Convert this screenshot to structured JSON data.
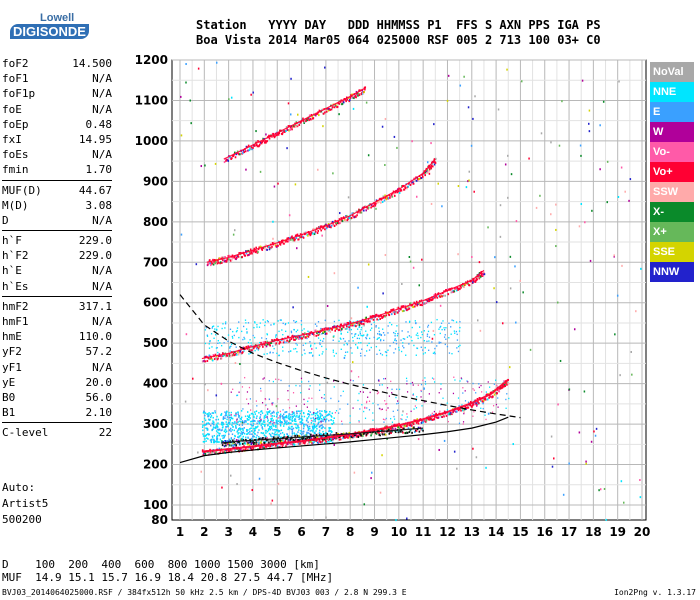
{
  "logo": {
    "line1": "Lowell",
    "line2": "DIGISONDE"
  },
  "header": {
    "labels": "Station   YYYY DAY   DDD HHMMSS P1  FFS S AXN PPS IGA PS",
    "values": "Boa Vista 2014 Mar05 064 025000 RSF 005 2 713 100 03+ C0"
  },
  "params": {
    "group1": [
      {
        "name": "foF2",
        "value": "14.500"
      },
      {
        "name": "foF1",
        "value": "N/A"
      },
      {
        "name": "foF1p",
        "value": "N/A"
      },
      {
        "name": "foE",
        "value": "N/A"
      },
      {
        "name": "foEp",
        "value": "0.48"
      },
      {
        "name": "fxI",
        "value": "14.95"
      },
      {
        "name": "foEs",
        "value": "N/A"
      },
      {
        "name": "fmin",
        "value": "1.70"
      }
    ],
    "group2": [
      {
        "name": "MUF(D)",
        "value": "44.67"
      },
      {
        "name": "M(D)",
        "value": "3.08"
      },
      {
        "name": "D",
        "value": "N/A"
      }
    ],
    "group3": [
      {
        "name": "h`F",
        "value": "229.0"
      },
      {
        "name": "h`F2",
        "value": "229.0"
      },
      {
        "name": "h`E",
        "value": "N/A"
      },
      {
        "name": "h`Es",
        "value": "N/A"
      }
    ],
    "group4": [
      {
        "name": "hmF2",
        "value": "317.1"
      },
      {
        "name": "hmF1",
        "value": "N/A"
      },
      {
        "name": "hmE",
        "value": "110.0"
      },
      {
        "name": "yF2",
        "value": "57.2"
      },
      {
        "name": "yF1",
        "value": "N/A"
      },
      {
        "name": "yE",
        "value": "20.0"
      },
      {
        "name": "B0",
        "value": "56.0"
      },
      {
        "name": "B1",
        "value": "2.10"
      }
    ],
    "group5": [
      {
        "name": "C-level",
        "value": "22"
      }
    ]
  },
  "auto": {
    "line1": "Auto:",
    "line2": "Artist5",
    "line3": "500200"
  },
  "distance_table": {
    "line1": "D    100  200  400  600  800 1000 1500 3000 [km]",
    "line2": "MUF  14.9 15.1 15.7 16.9 18.4 20.8 27.5 44.7 [MHz]"
  },
  "footer": {
    "left": "BVJ03_2014064025000.RSF / 384fx512h 50 kHz 2.5 km / DPS-4D BVJ03 003 / 2.8 N 299.3 E",
    "right": "Ion2Png v. 1.3.17"
  },
  "legend": [
    {
      "label": "NoVal",
      "color": "#a8a8a8"
    },
    {
      "label": "NNE",
      "color": "#00e5ff"
    },
    {
      "label": "E",
      "color": "#3aa0ff"
    },
    {
      "label": "W",
      "color": "#b0009a"
    },
    {
      "label": "Vo-",
      "color": "#ff5aa8"
    },
    {
      "label": "Vo+",
      "color": "#ff0033"
    },
    {
      "label": "SSW",
      "color": "#ffaaaa"
    },
    {
      "label": "X-",
      "color": "#0a8a2a"
    },
    {
      "label": "X+",
      "color": "#66b85a"
    },
    {
      "label": "SSE",
      "color": "#d4d400"
    },
    {
      "label": "NNW",
      "color": "#2222cc"
    }
  ],
  "chart_data": {
    "type": "scatter",
    "xlabel": "",
    "ylabel": "",
    "xlim": [
      1,
      20
    ],
    "ylim": [
      80,
      1200
    ],
    "x_ticks": [
      1,
      2,
      3,
      4,
      5,
      6,
      7,
      8,
      9,
      10,
      11,
      12,
      13,
      14,
      15,
      16,
      17,
      18,
      19,
      20
    ],
    "y_ticks": [
      80,
      100,
      200,
      300,
      400,
      500,
      600,
      700,
      800,
      900,
      1000,
      1100,
      1200
    ],
    "grid": true,
    "traces": [
      {
        "name": "O-trace F2",
        "color": "#ff0033",
        "x": [
          1.9,
          3,
          4,
          5,
          6,
          7,
          8,
          9,
          10,
          11,
          12,
          13,
          13.8,
          14.5
        ],
        "y": [
          232,
          238,
          245,
          252,
          258,
          266,
          275,
          285,
          297,
          312,
          330,
          352,
          375,
          410
        ]
      },
      {
        "name": "2-hop",
        "color": "#ff0033",
        "x": [
          1.9,
          3,
          4,
          5,
          6,
          7,
          8,
          9,
          10,
          11,
          12,
          13,
          13.5
        ],
        "y": [
          462,
          475,
          492,
          507,
          520,
          533,
          548,
          565,
          585,
          605,
          630,
          655,
          680
        ]
      },
      {
        "name": "3-hop",
        "color": "#ff0033",
        "x": [
          2.1,
          3,
          4,
          5,
          6,
          7,
          8,
          9,
          10,
          11,
          11.5
        ],
        "y": [
          700,
          712,
          730,
          748,
          768,
          790,
          815,
          848,
          880,
          920,
          955
        ]
      },
      {
        "name": "4-hop",
        "color": "#ff0033",
        "x": [
          2.8,
          4,
          5,
          6,
          7,
          8,
          8.6
        ],
        "y": [
          955,
          990,
          1020,
          1050,
          1080,
          1110,
          1130
        ]
      },
      {
        "name": "X-trace",
        "color": "#111111",
        "x": [
          2.7,
          3.5,
          4.5,
          5.5,
          6.5,
          8,
          9.5,
          11
        ],
        "y": [
          253,
          258,
          262,
          266,
          270,
          276,
          283,
          290
        ]
      }
    ],
    "profile": {
      "color": "#000000",
      "x": [
        1,
        2,
        3,
        4,
        5,
        6,
        7,
        8,
        9,
        10,
        11,
        12,
        13,
        14,
        14.5
      ],
      "y": [
        205,
        222,
        230,
        236,
        241,
        246,
        251,
        256,
        262,
        268,
        274,
        281,
        290,
        305,
        317
      ]
    },
    "muf_curve": {
      "color": "#000000",
      "dashed": true,
      "x": [
        1,
        2,
        3,
        4,
        5,
        6,
        7,
        8,
        9,
        10,
        11,
        12,
        13,
        14,
        15
      ],
      "y": [
        620,
        545,
        505,
        475,
        452,
        432,
        414,
        398,
        384,
        370,
        358,
        346,
        335,
        325,
        316
      ]
    }
  }
}
